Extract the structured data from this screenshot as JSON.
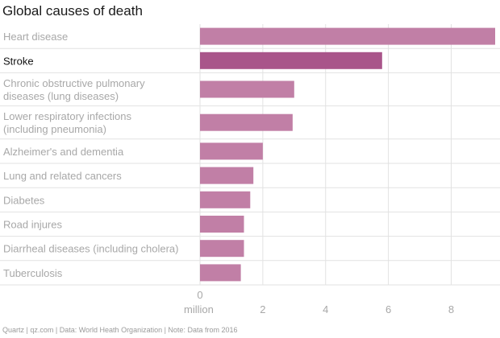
{
  "chart_data": {
    "type": "bar",
    "orientation": "horizontal",
    "title": "Global causes of death",
    "categories": [
      [
        "Heart disease"
      ],
      [
        "Stroke"
      ],
      [
        "Chronic obstructive pulmonary",
        "diseases (lung diseases)"
      ],
      [
        "Lower respiratory infections",
        "(including pneumonia)"
      ],
      [
        "Alzheimer's and dementia"
      ],
      [
        "Lung and related cancers"
      ],
      [
        "Diabetes"
      ],
      [
        "Road injures"
      ],
      [
        "Diarrheal diseases (including cholera)"
      ],
      [
        "Tuberculosis"
      ]
    ],
    "values": [
      9.4,
      5.8,
      3.0,
      2.95,
      2.0,
      1.7,
      1.6,
      1.4,
      1.4,
      1.3
    ],
    "highlight_index": 1,
    "xlim": [
      0,
      9.4
    ],
    "xticks": [
      0,
      2,
      4,
      6,
      8
    ],
    "xlabel": "million",
    "colors": {
      "bar": "#c17fa6",
      "highlight": "#a9558a",
      "grid": "#e2e2e2"
    },
    "source": "Quartz | qz.com | Data: World Heath Organization | Note: Data from 2016"
  }
}
